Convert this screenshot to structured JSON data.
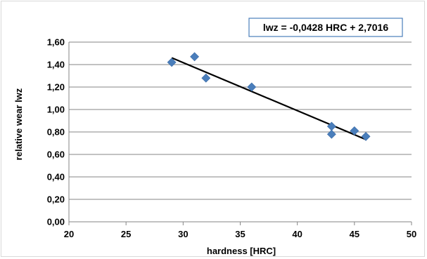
{
  "chart_data": {
    "type": "scatter",
    "title": "",
    "xlabel": "hardness [HRC]",
    "ylabel": "relative wear lwz",
    "xlim": [
      20,
      50
    ],
    "ylim": [
      0,
      1.6
    ],
    "x_ticks": [
      20,
      25,
      30,
      35,
      40,
      45,
      50
    ],
    "x_tick_labels": [
      "20",
      "25",
      "30",
      "35",
      "40",
      "45",
      "50"
    ],
    "y_ticks": [
      0,
      0.2,
      0.4,
      0.6,
      0.8,
      1.0,
      1.2,
      1.4,
      1.6
    ],
    "y_tick_labels": [
      "0,00",
      "0,20",
      "0,40",
      "0,60",
      "0,80",
      "1,00",
      "1,20",
      "1,40",
      "1,60"
    ],
    "grid": "horizontal",
    "legend": "none",
    "series": [
      {
        "x": [
          29,
          31,
          32,
          36,
          43,
          43,
          45,
          46
        ],
        "y": [
          1.42,
          1.47,
          1.28,
          1.2,
          0.85,
          0.78,
          0.81,
          0.76
        ],
        "marker": "diamond",
        "color": "#4a7ebb"
      }
    ],
    "trendline": {
      "type": "linear",
      "slope": -0.0428,
      "intercept": 2.7016,
      "x_range": [
        29,
        46
      ],
      "color": "#000000",
      "equation_label": "lwz = -0,0428 HRC + 2,7016",
      "equation_box_border": "#4a7ebb"
    }
  }
}
